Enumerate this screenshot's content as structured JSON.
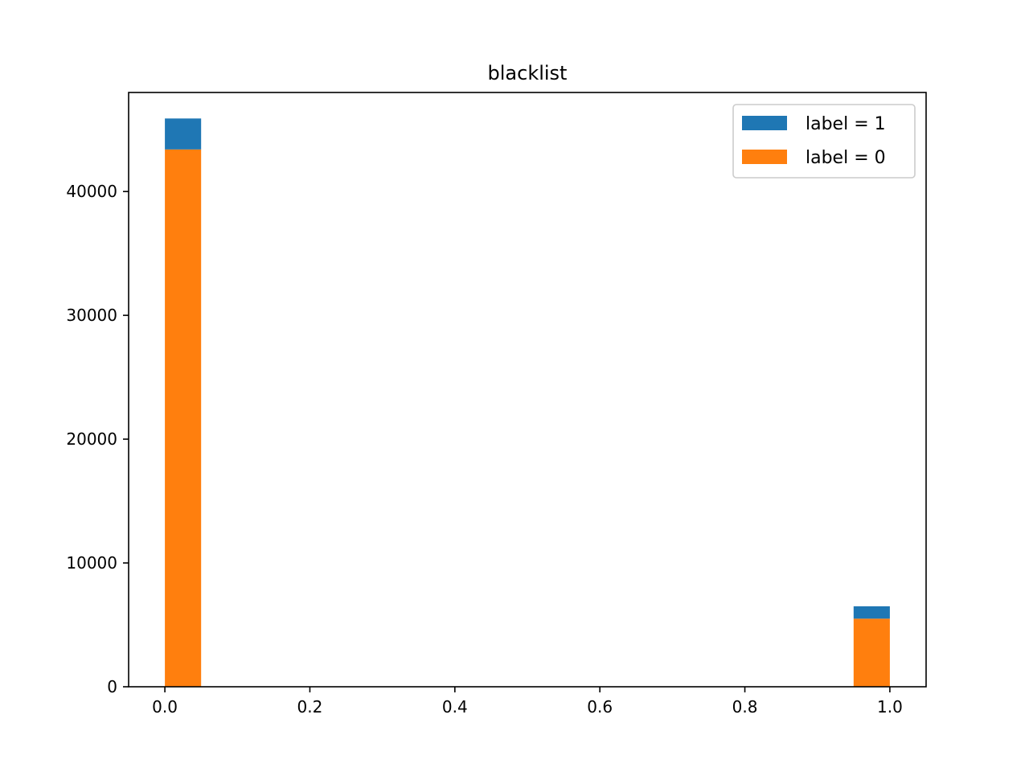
{
  "chart_data": {
    "type": "bar",
    "stacked": true,
    "title": "blacklist",
    "xlabel": "",
    "ylabel": "",
    "bins": [
      {
        "x_start": 0.0,
        "x_end": 0.05
      },
      {
        "x_start": 0.95,
        "x_end": 1.0
      }
    ],
    "series": [
      {
        "name": "label = 0",
        "color": "#ff7f0e",
        "values": [
          43400,
          5500
        ]
      },
      {
        "name": "label = 1",
        "color": "#1f77b4",
        "values": [
          2500,
          1000
        ]
      }
    ],
    "xlim": [
      -0.05,
      1.05
    ],
    "ylim": [
      0,
      48000
    ],
    "xticks": [
      0.0,
      0.2,
      0.4,
      0.6,
      0.8,
      1.0
    ],
    "xtick_labels": [
      "0.0",
      "0.2",
      "0.4",
      "0.6",
      "0.8",
      "1.0"
    ],
    "yticks": [
      0,
      10000,
      20000,
      30000,
      40000
    ],
    "ytick_labels": [
      "0",
      "10000",
      "20000",
      "30000",
      "40000"
    ],
    "grid": false,
    "legend_position": "top-right",
    "legend": [
      {
        "name": "label = 1",
        "color": "#1f77b4"
      },
      {
        "name": "label = 0",
        "color": "#ff7f0e"
      }
    ]
  }
}
